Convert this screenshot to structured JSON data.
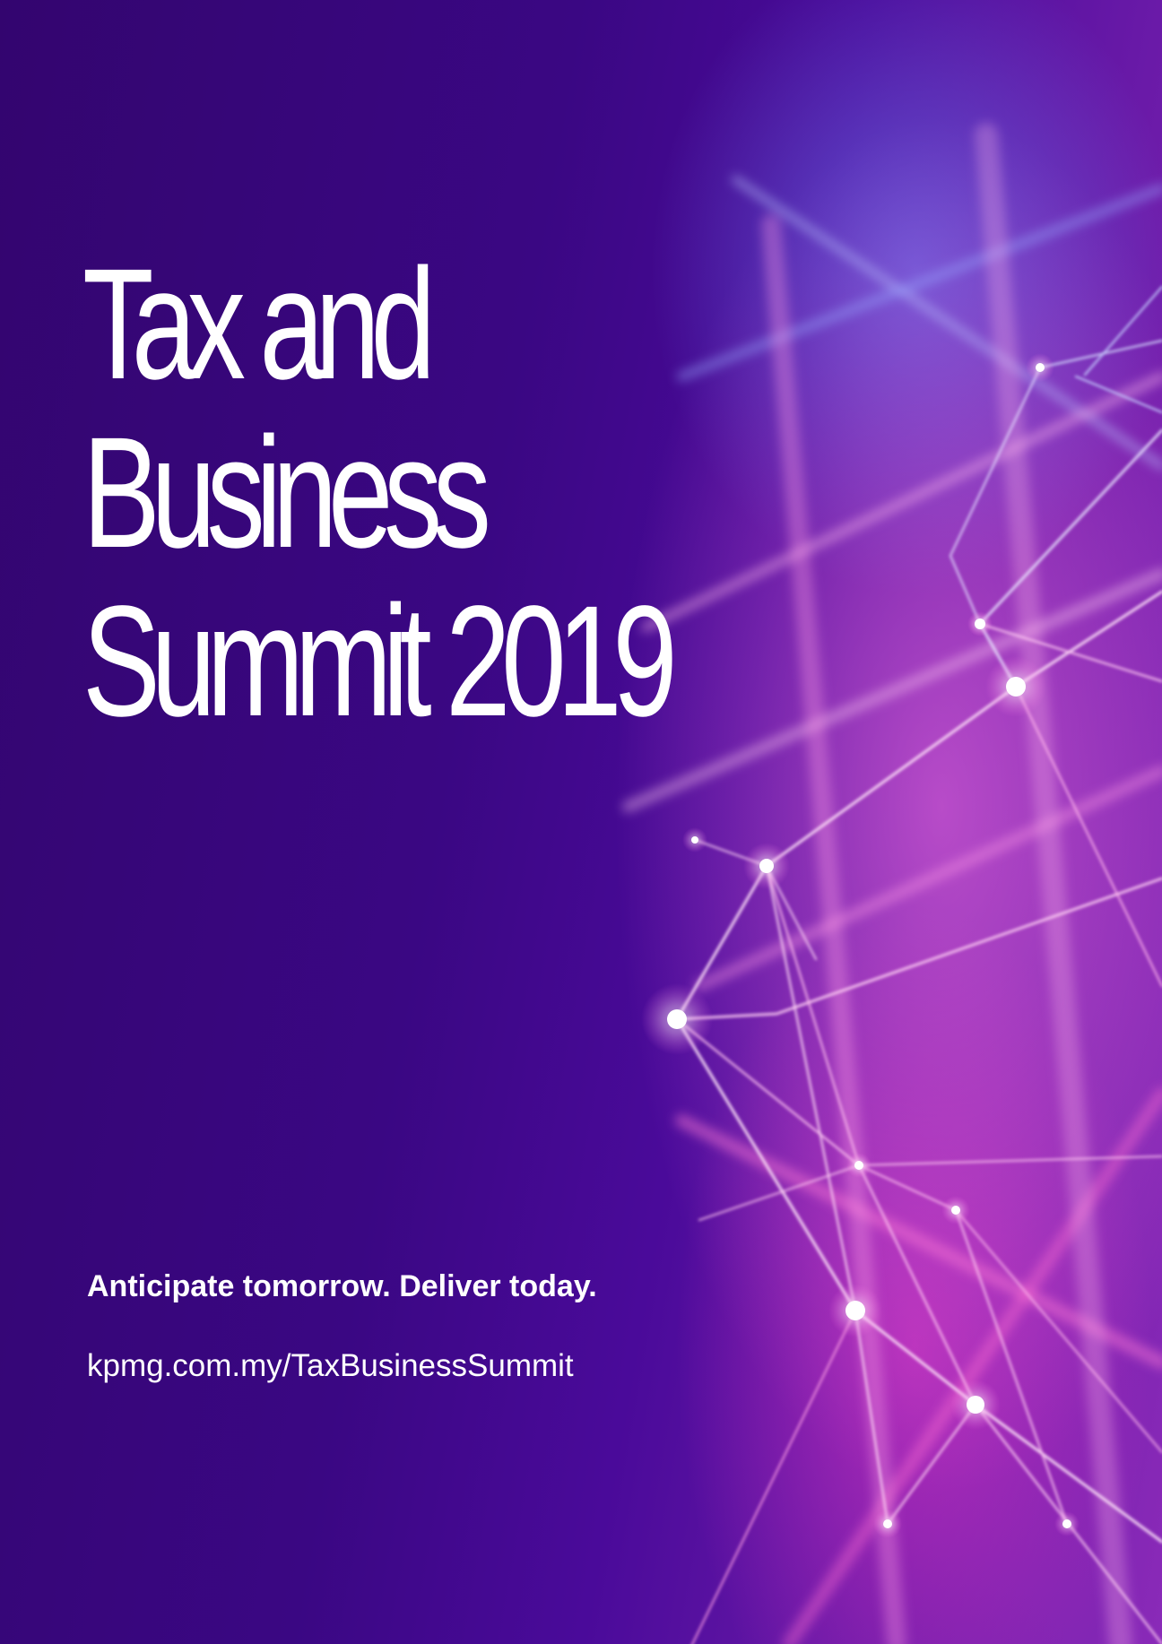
{
  "title": {
    "line1": "Tax and",
    "line2": "Business",
    "line3": "Summit 2019"
  },
  "tagline": "Anticipate tomorrow. Deliver today.",
  "url": "kpmg.com.my/TaxBusinessSummit",
  "colors": {
    "background": "#35047a",
    "accent_pink": "#ff4fd8",
    "accent_blue": "#7a8cff",
    "text": "#ffffff"
  }
}
